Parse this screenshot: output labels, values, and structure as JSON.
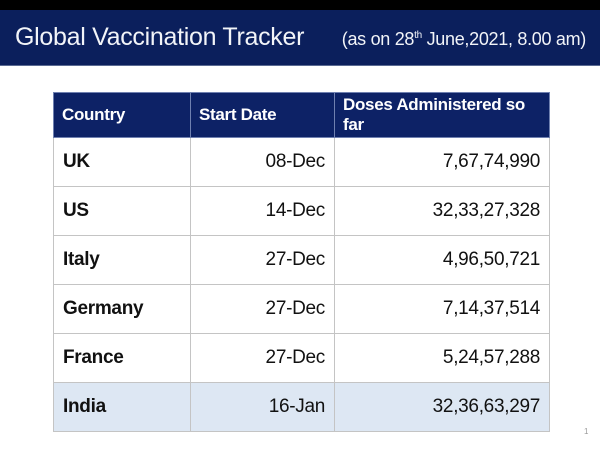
{
  "header": {
    "title": "Global Vaccination Tracker",
    "subtitle_prefix": "(as on 28",
    "subtitle_sup": "th",
    "subtitle_suffix": " June,2021, 8.00 am)"
  },
  "table": {
    "columns": [
      "Country",
      "Start Date",
      "Doses Administered so far"
    ],
    "rows": [
      {
        "country": "UK",
        "start_date": "08-Dec",
        "doses": "7,67,74,990"
      },
      {
        "country": "US",
        "start_date": "14-Dec",
        "doses": "32,33,27,328"
      },
      {
        "country": "Italy",
        "start_date": "27-Dec",
        "doses": "4,96,50,721"
      },
      {
        "country": "Germany",
        "start_date": "27-Dec",
        "doses": "7,14,37,514"
      },
      {
        "country": "France",
        "start_date": "27-Dec",
        "doses": "5,24,57,288"
      },
      {
        "country": "India",
        "start_date": "16-Jan",
        "doses": "32,36,63,297",
        "highlighted": true
      }
    ]
  },
  "footer": {
    "page_number": "1"
  },
  "colors": {
    "title_band": "#0b1f5c",
    "table_header": "#0d2266",
    "highlight_row": "#dde7f3"
  }
}
